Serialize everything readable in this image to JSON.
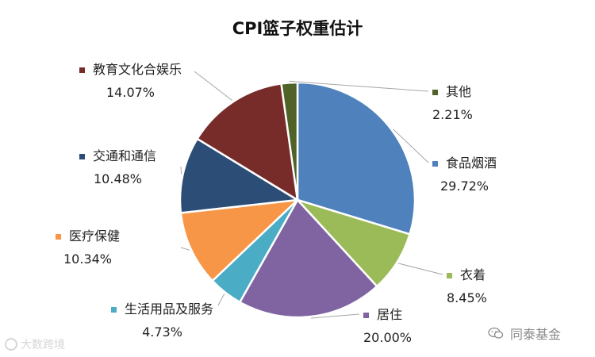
{
  "chart_data": {
    "type": "pie",
    "title": "CPI篮子权重估计",
    "start_angle_deg": 0,
    "direction": "clockwise",
    "slices": [
      {
        "label": "食品烟酒",
        "value": 29.72,
        "value_label": "29.72%",
        "color": "#4f81bd"
      },
      {
        "label": "衣着",
        "value": 8.45,
        "value_label": "8.45%",
        "color": "#9bbb59"
      },
      {
        "label": "居住",
        "value": 20.0,
        "value_label": "20.00%",
        "color": "#8064a2"
      },
      {
        "label": "生活用品及服务",
        "value": 4.73,
        "value_label": "4.73%",
        "color": "#4bacc6"
      },
      {
        "label": "医疗保健",
        "value": 10.34,
        "value_label": "10.34%",
        "color": "#f79646"
      },
      {
        "label": "交通和通信",
        "value": 10.48,
        "value_label": "10.48%",
        "color": "#2c4d75"
      },
      {
        "label": "教育文化合娱乐",
        "value": 14.07,
        "value_label": "14.07%",
        "color": "#772c2a"
      },
      {
        "label": "其他",
        "value": 2.21,
        "value_label": "2.21%",
        "color": "#4f6228"
      }
    ]
  },
  "watermarks": {
    "left_text": "大数跨境",
    "right_text": "同泰基金",
    "right_icon": "wechat-icon"
  }
}
